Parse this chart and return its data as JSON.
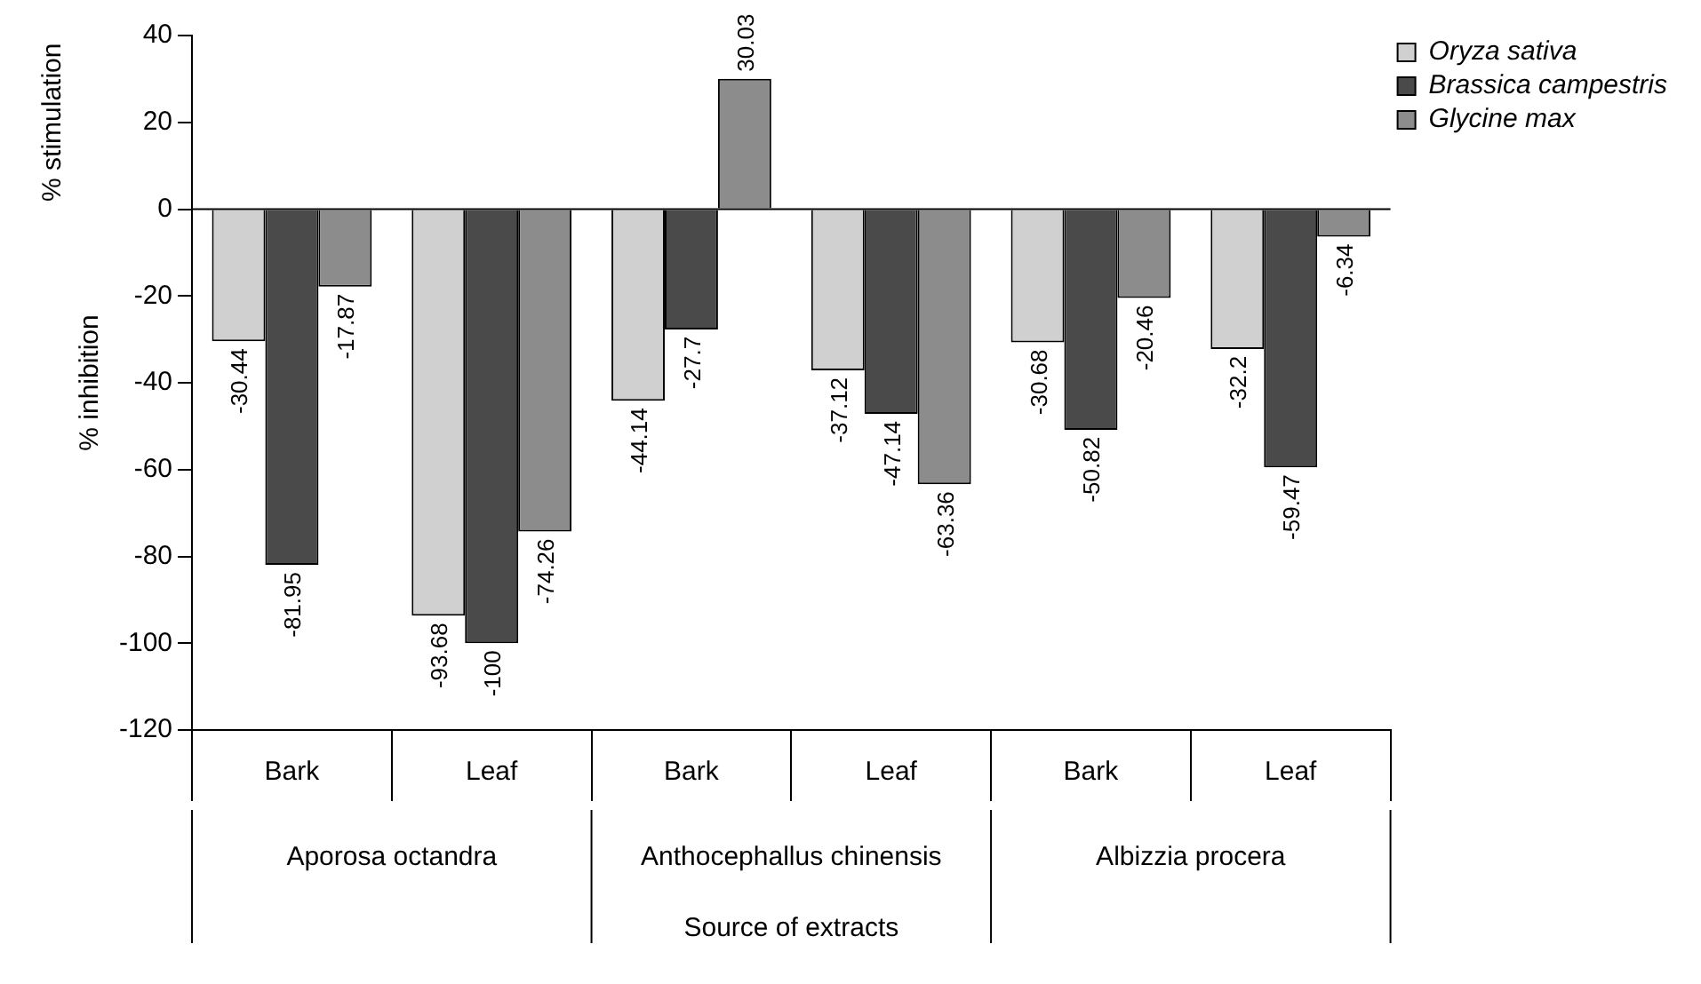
{
  "chart_data": {
    "type": "bar",
    "ylabel": "% inhibition",
    "xlabel": "Source of extracts",
    "categories": [
      "Bark",
      "Leaf",
      "Bark",
      "Leaf",
      "Bark",
      "Leaf"
    ],
    "series": [
      {
        "name": "Oryza sativa",
        "color": "#d0d0d0",
        "values": [
          -30.44,
          -93.68,
          -44.14,
          -37.12,
          -30.68,
          -32.2
        ]
      },
      {
        "name": "Brassica campestris",
        "color": "#4a4a4a",
        "values": [
          -81.95,
          -100,
          -27.7,
          -47.14,
          -50.82,
          -59.47
        ]
      },
      {
        "name": "Glycine max",
        "color": "#8c8c8c",
        "values": [
          -17.87,
          -74.26,
          30.03,
          -63.36,
          -20.46,
          -6.34
        ]
      }
    ],
    "ylim": [
      -120,
      40
    ],
    "yticks": [
      -120,
      -100,
      -80,
      -60,
      -40,
      -20,
      0,
      20,
      40
    ],
    "ref_lines": [
      {
        "axis": "y",
        "value": 0,
        "color": "#000000"
      }
    ],
    "annotations": [
      "% stimulation",
      "Aporosa octandra",
      "Anthocephallus chinensis",
      "Albizzia procera"
    ],
    "data_labels": true,
    "grid": false,
    "legend": "top right"
  }
}
